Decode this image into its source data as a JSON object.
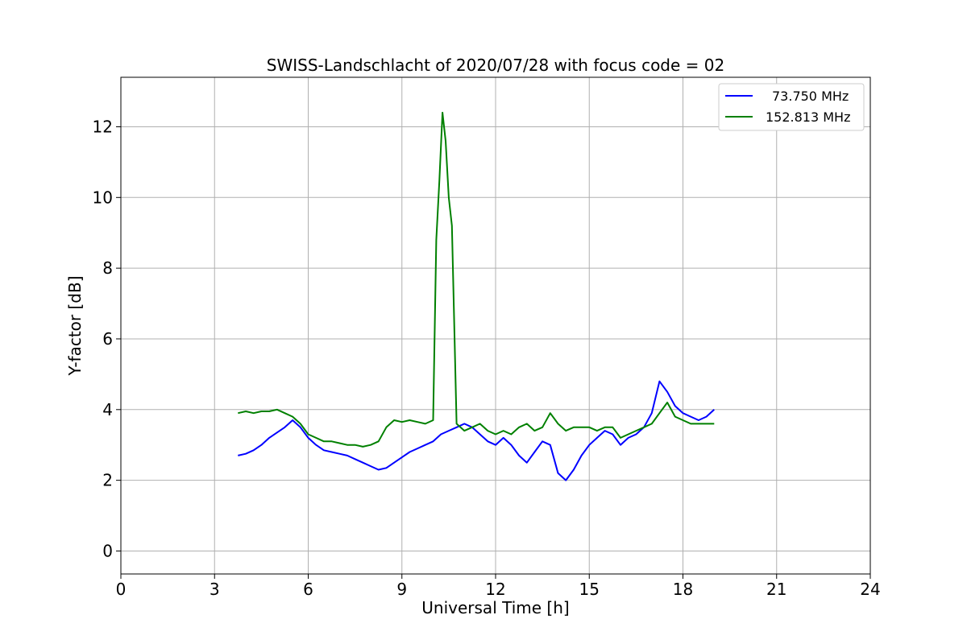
{
  "chart_data": {
    "type": "line",
    "title": "SWISS-Landschlacht of 2020/07/28 with focus code = 02",
    "xlabel": "Universal Time [h]",
    "ylabel": "Y-factor [dB]",
    "xlim": [
      0,
      24
    ],
    "ylim": [
      -0.65,
      13.4
    ],
    "xticks": [
      0,
      3,
      6,
      9,
      12,
      15,
      18,
      21,
      24
    ],
    "yticks": [
      0,
      2,
      4,
      6,
      8,
      10,
      12
    ],
    "grid": true,
    "legend_position": "top-right",
    "series": [
      {
        "name": "73.750 MHz",
        "color": "#0000ff",
        "x": [
          3.75,
          4.0,
          4.25,
          4.5,
          4.75,
          5.0,
          5.25,
          5.5,
          5.75,
          6.0,
          6.25,
          6.5,
          6.75,
          7.0,
          7.25,
          7.5,
          7.75,
          8.0,
          8.25,
          8.5,
          8.75,
          9.0,
          9.25,
          9.5,
          9.75,
          10.0,
          10.25,
          10.5,
          10.75,
          11.0,
          11.25,
          11.5,
          11.75,
          12.0,
          12.25,
          12.5,
          12.75,
          13.0,
          13.25,
          13.5,
          13.75,
          14.0,
          14.25,
          14.5,
          14.75,
          15.0,
          15.25,
          15.5,
          15.75,
          16.0,
          16.25,
          16.5,
          16.75,
          17.0,
          17.25,
          17.5,
          17.75,
          18.0,
          18.25,
          18.5,
          18.75,
          19.0
        ],
        "y": [
          2.7,
          2.75,
          2.85,
          3.0,
          3.2,
          3.35,
          3.5,
          3.7,
          3.5,
          3.2,
          3.0,
          2.85,
          2.8,
          2.75,
          2.7,
          2.6,
          2.5,
          2.4,
          2.3,
          2.35,
          2.5,
          2.65,
          2.8,
          2.9,
          3.0,
          3.1,
          3.3,
          3.4,
          3.5,
          3.6,
          3.5,
          3.3,
          3.1,
          3.0,
          3.2,
          3.0,
          2.7,
          2.5,
          2.8,
          3.1,
          3.0,
          2.2,
          2.0,
          2.3,
          2.7,
          3.0,
          3.2,
          3.4,
          3.3,
          3.0,
          3.2,
          3.3,
          3.5,
          3.9,
          4.8,
          4.5,
          4.1,
          3.9,
          3.8,
          3.7,
          3.8,
          4.0
        ]
      },
      {
        "name": "152.813 MHz",
        "color": "#008000",
        "x": [
          3.75,
          4.0,
          4.25,
          4.5,
          4.75,
          5.0,
          5.25,
          5.5,
          5.75,
          6.0,
          6.25,
          6.5,
          6.75,
          7.0,
          7.25,
          7.5,
          7.75,
          8.0,
          8.25,
          8.5,
          8.75,
          9.0,
          9.25,
          9.5,
          9.75,
          10.0,
          10.1,
          10.2,
          10.3,
          10.4,
          10.5,
          10.6,
          10.75,
          11.0,
          11.25,
          11.5,
          11.75,
          12.0,
          12.25,
          12.5,
          12.75,
          13.0,
          13.25,
          13.5,
          13.75,
          14.0,
          14.25,
          14.5,
          14.75,
          15.0,
          15.25,
          15.5,
          15.75,
          16.0,
          16.25,
          16.5,
          16.75,
          17.0,
          17.25,
          17.5,
          17.75,
          18.0,
          18.25,
          18.5,
          18.75,
          19.0
        ],
        "y": [
          3.9,
          3.95,
          3.9,
          3.95,
          3.95,
          4.0,
          3.9,
          3.8,
          3.6,
          3.3,
          3.2,
          3.1,
          3.1,
          3.05,
          3.0,
          3.0,
          2.95,
          3.0,
          3.1,
          3.5,
          3.7,
          3.65,
          3.7,
          3.65,
          3.6,
          3.7,
          8.8,
          10.5,
          12.4,
          11.6,
          10.0,
          9.2,
          3.6,
          3.4,
          3.5,
          3.6,
          3.4,
          3.3,
          3.4,
          3.3,
          3.5,
          3.6,
          3.4,
          3.5,
          3.9,
          3.6,
          3.4,
          3.5,
          3.5,
          3.5,
          3.4,
          3.5,
          3.5,
          3.2,
          3.3,
          3.4,
          3.5,
          3.6,
          3.9,
          4.2,
          3.8,
          3.7,
          3.6,
          3.6,
          3.6,
          3.6
        ]
      }
    ]
  }
}
